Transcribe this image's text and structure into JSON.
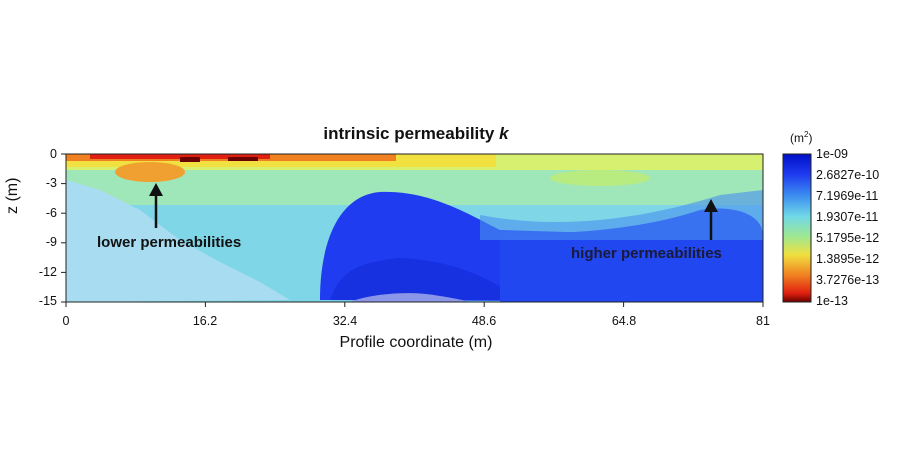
{
  "chart_data": {
    "type": "heatmap",
    "title": "intrinsic permeability k",
    "title_main": "intrinsic permeability ",
    "title_var": "k",
    "xlabel": "Profile coordinate (m)",
    "ylabel": "z (m)",
    "xlim": [
      0,
      81
    ],
    "ylim": [
      -15,
      0
    ],
    "x_ticks": [
      "0",
      "16.2",
      "32.4",
      "48.6",
      "64.8",
      "81"
    ],
    "y_ticks": [
      "0",
      "-3",
      "-6",
      "-9",
      "-12",
      "-15"
    ],
    "colorbar": {
      "unit_base": "(m",
      "unit_exp": "2",
      "unit_close": ")",
      "scale": "log",
      "labels": [
        "1e-09",
        "2.6827e-10",
        "7.1969e-11",
        "1.9307e-11",
        "5.1795e-12",
        "1.3895e-12",
        "3.7276e-13",
        "1e-13"
      ],
      "colors": [
        "#0010c8",
        "#1f3cf0",
        "#3c8cf0",
        "#70d8e8",
        "#a0e890",
        "#f0e040",
        "#f08020",
        "#e02010",
        "#6a0000"
      ]
    },
    "annotations": [
      {
        "text": "lower permeabilities",
        "x": 10.5,
        "y": -3.7
      },
      {
        "text": "higher permeabilities",
        "x": 75.0,
        "y": -5.5
      }
    ],
    "field_description_values": {
      "top_layer_k": 3.7e-13,
      "background_k": 2e-11,
      "body_k": 2.7e-10
    }
  }
}
